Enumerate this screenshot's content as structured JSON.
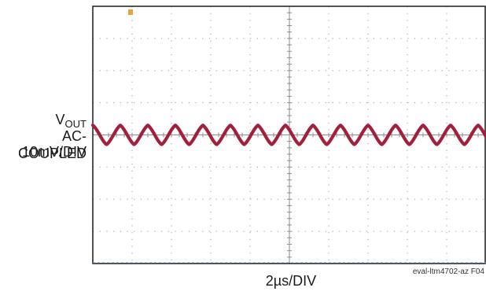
{
  "chart_data": {
    "type": "line",
    "title": "",
    "y_label": {
      "symbol": "V",
      "subscript": "OUT",
      "line2": "AC-COUPLED",
      "line3": "10mV/DIV"
    },
    "x_label": "2µs/DIV",
    "figure_id": "eval-ltm4702-az F04",
    "grid": {
      "x_divisions": 10,
      "y_divisions": 8,
      "on": true
    },
    "x_range_us": [
      0,
      20
    ],
    "y_range_mv": [
      -40,
      40
    ],
    "series": [
      {
        "color": "#a3203d",
        "waveform": "triangle-ripple",
        "period_us": 1.4,
        "amplitude_pk_pk_mv": 6,
        "offset_mv": 0
      }
    ],
    "trigger_marker_color": "#e0a83a",
    "ground_marker_color": "#7aa3c8"
  }
}
